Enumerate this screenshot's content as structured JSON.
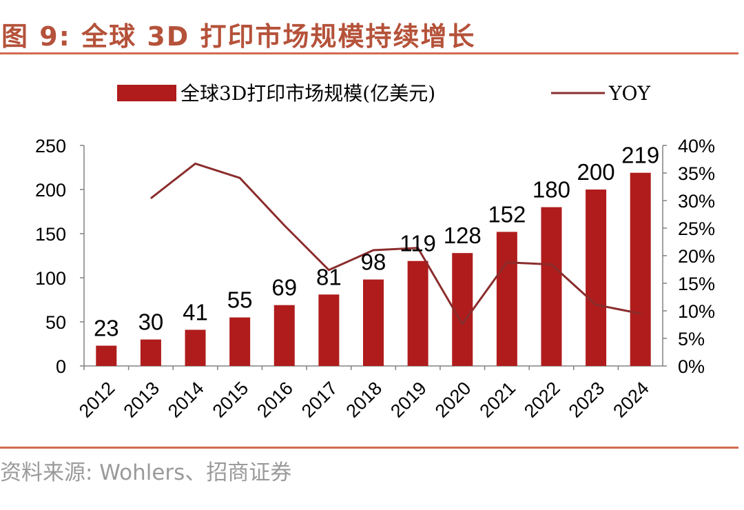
{
  "header": {
    "title": "图 9:  全球 3D 打印市场规模持续增长"
  },
  "footer": {
    "source": "资料来源:  Wohlers、招商证券"
  },
  "colors": {
    "bar": "#b01c1c",
    "line": "#8b2c2c",
    "accent": "#d26a4e"
  },
  "chart_data": {
    "type": "bar",
    "categories": [
      "2012",
      "2013",
      "2014",
      "2015",
      "2016",
      "2017",
      "2018",
      "2019",
      "2020",
      "2021",
      "2022",
      "2023",
      "2024"
    ],
    "series": [
      {
        "name": "全球3D打印市场规模(亿美元)",
        "type": "bar",
        "axis": "left",
        "values": [
          23,
          30,
          41,
          55,
          69,
          81,
          98,
          119,
          128,
          152,
          180,
          200,
          219
        ]
      },
      {
        "name": "YOY",
        "type": "line",
        "axis": "right",
        "values": [
          null,
          30.4,
          36.7,
          34.1,
          25.5,
          17.4,
          21.0,
          21.4,
          7.6,
          18.8,
          18.4,
          11.1,
          9.5
        ]
      }
    ],
    "y_left": {
      "min": 0,
      "max": 250,
      "ticks": [
        "0",
        "50",
        "100",
        "150",
        "200",
        "250"
      ]
    },
    "y_right": {
      "min": 0,
      "max": 40,
      "ticks": [
        "0%",
        "5%",
        "10%",
        "15%",
        "20%",
        "25%",
        "30%",
        "35%",
        "40%"
      ]
    },
    "legend": {
      "bar_label": "全球3D打印市场规模(亿美元)",
      "line_label": "YOY",
      "position": "top-center"
    },
    "data_labels": [
      "23",
      "30",
      "41",
      "55",
      "69",
      "81",
      "98",
      "119",
      "128",
      "152",
      "180",
      "200",
      "219"
    ]
  }
}
